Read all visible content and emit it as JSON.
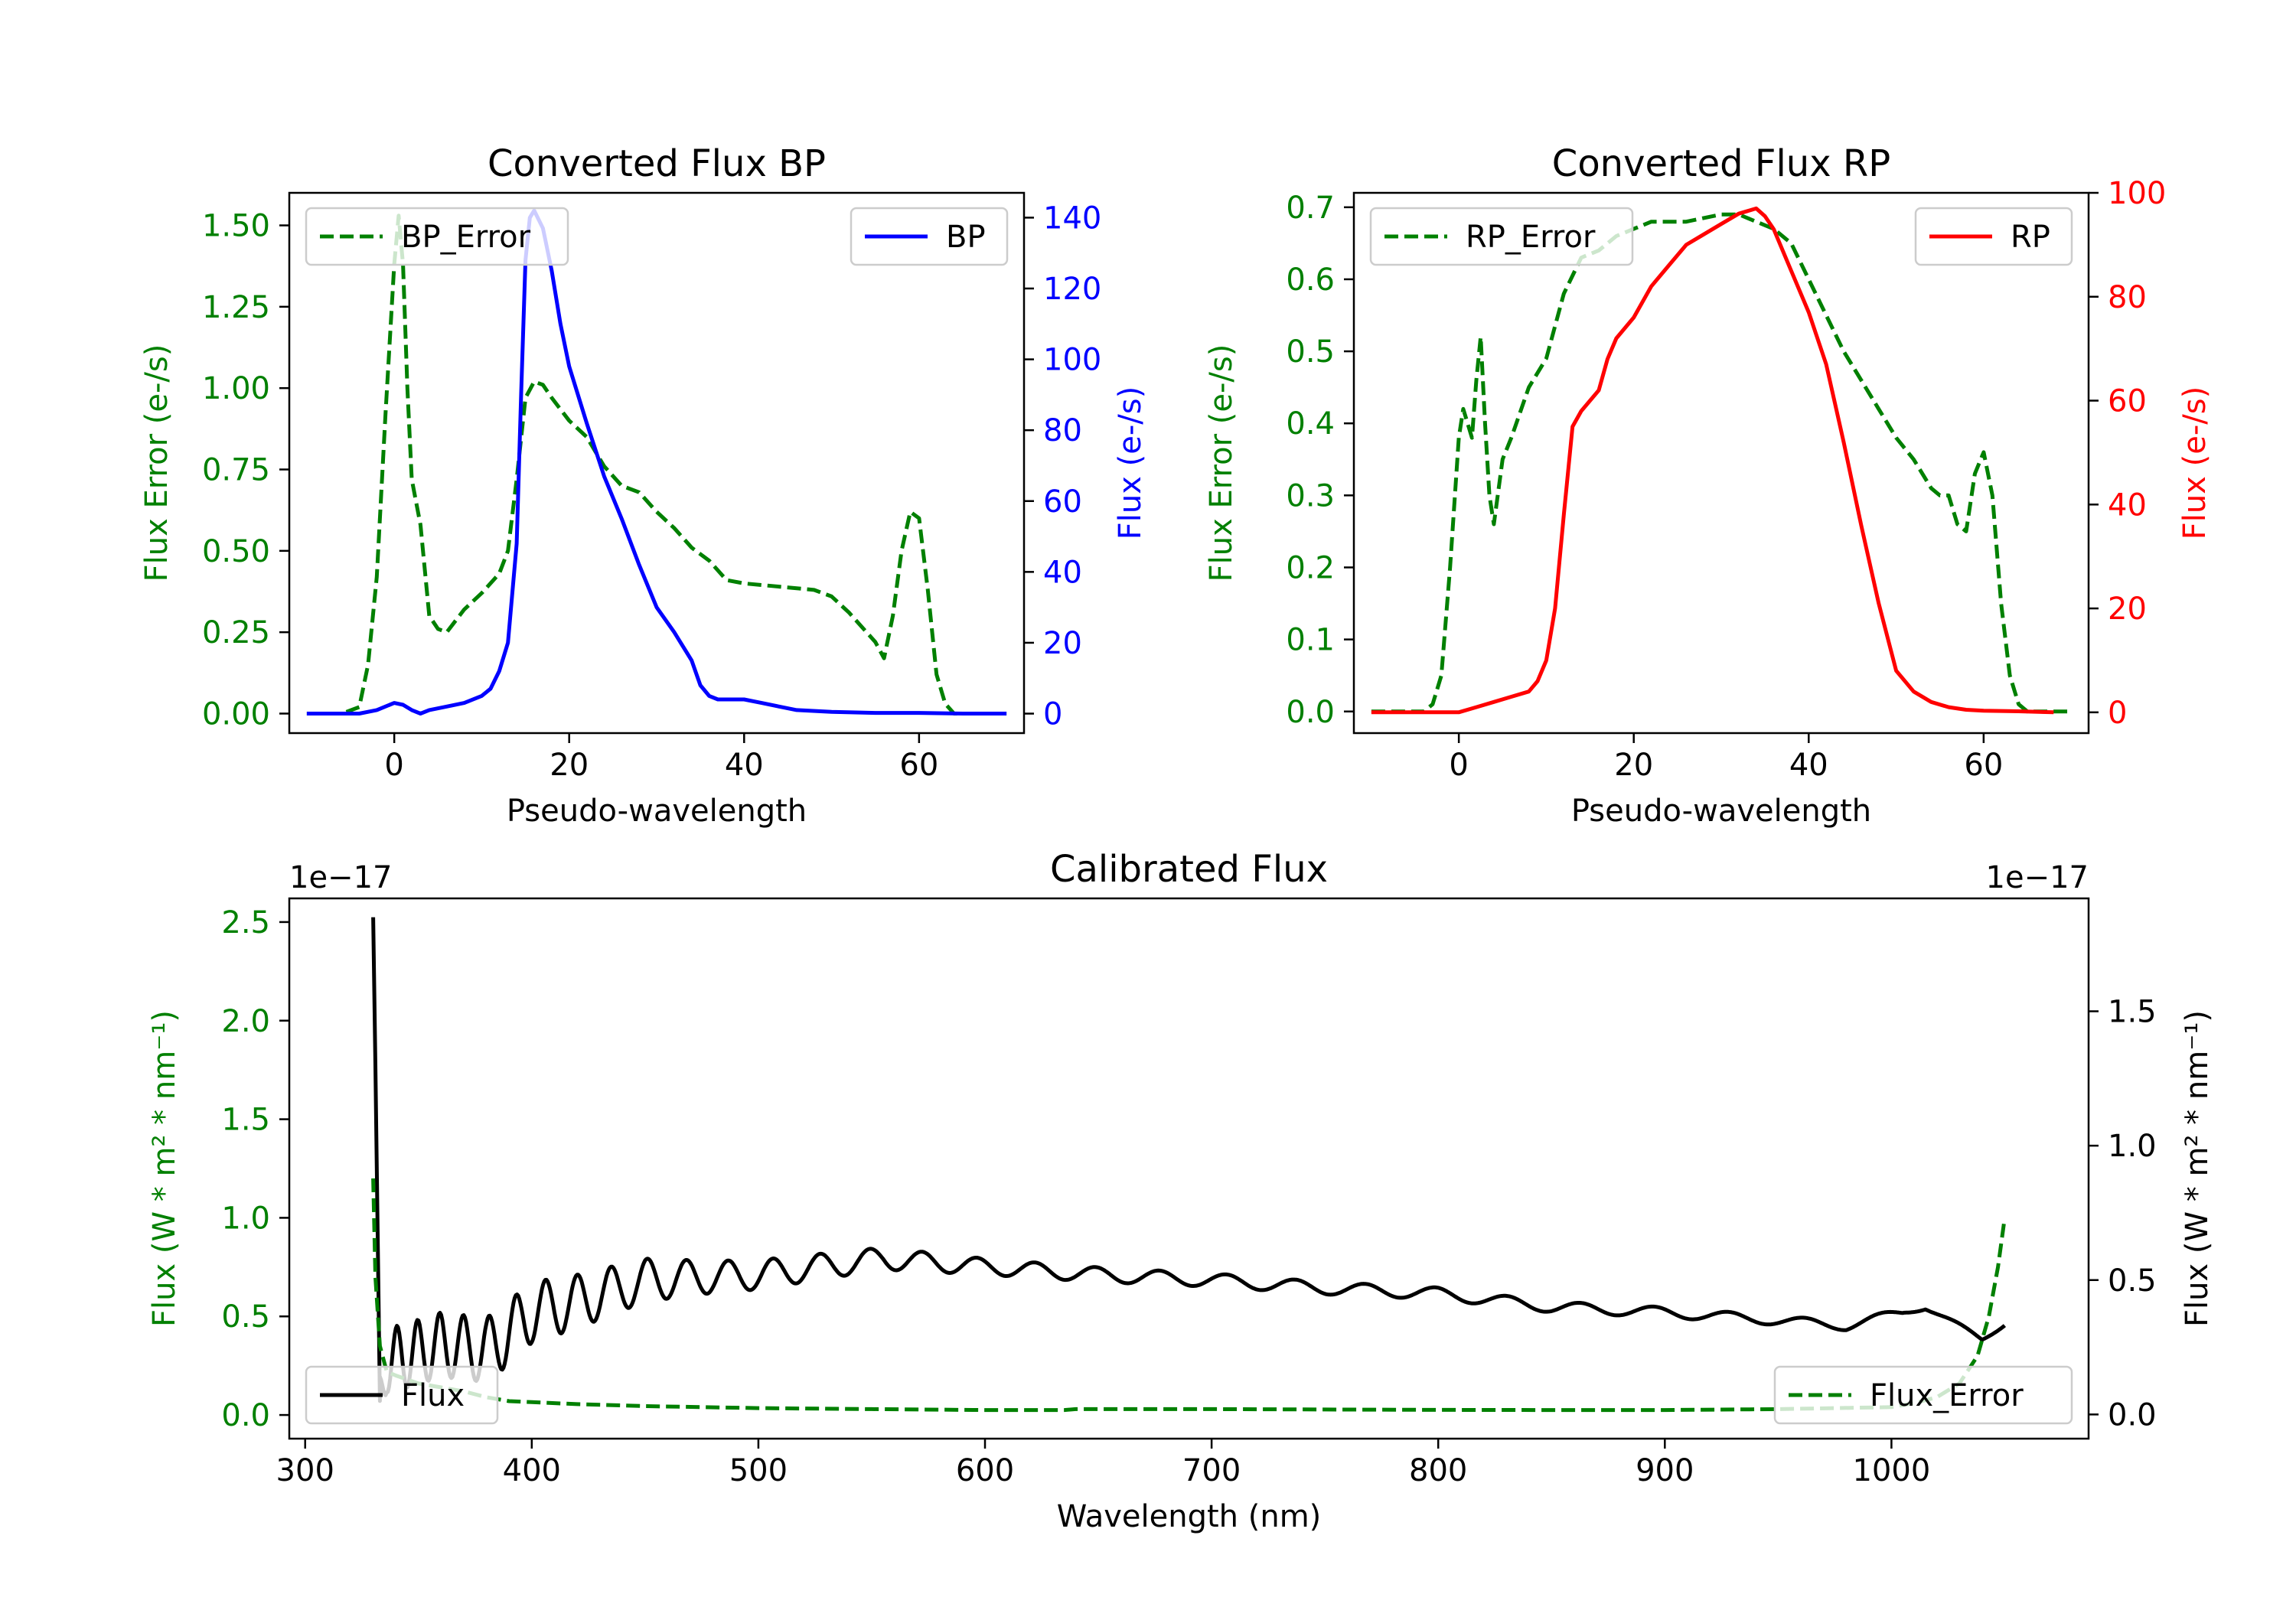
{
  "chart_data": [
    {
      "type": "line",
      "title": "Converted Flux BP",
      "xlabel": "Pseudo-wavelength",
      "xlim": [
        -12,
        72
      ],
      "x_ticks": [
        0,
        20,
        40,
        60
      ],
      "left_axis": {
        "label": "Flux Error (e-/s)",
        "color": "#008000",
        "ylim": [
          -0.06,
          1.6
        ],
        "ticks": [
          0.0,
          0.25,
          0.5,
          0.75,
          1.0,
          1.25,
          1.5
        ],
        "tick_labels": [
          "0.00",
          "0.25",
          "0.50",
          "0.75",
          "1.00",
          "1.25",
          "1.50"
        ]
      },
      "right_axis": {
        "label": "Flux (e-/s)",
        "color": "#0000ff",
        "ylim": [
          -5.5,
          147
        ],
        "ticks": [
          0,
          20,
          40,
          60,
          80,
          100,
          120,
          140
        ],
        "tick_labels": [
          "0",
          "20",
          "40",
          "60",
          "80",
          "100",
          "120",
          "140"
        ]
      },
      "series": [
        {
          "name": "BP_Error",
          "axis": "left",
          "color": "#008000",
          "style": "dashed",
          "x": [
            -10,
            -6,
            -4,
            -3,
            -2,
            -1,
            0,
            0.5,
            1,
            1.5,
            2,
            3,
            4,
            5,
            6,
            8,
            10,
            12,
            13,
            14,
            15,
            16,
            17,
            18,
            20,
            22,
            24,
            26,
            28,
            30,
            32,
            34,
            36,
            38,
            40,
            44,
            48,
            50,
            52,
            54,
            55,
            56,
            57,
            58,
            59,
            60,
            61,
            62,
            63,
            64,
            66,
            70
          ],
          "values": [
            0,
            0,
            0.02,
            0.15,
            0.42,
            0.92,
            1.38,
            1.53,
            1.38,
            1.0,
            0.72,
            0.58,
            0.3,
            0.26,
            0.25,
            0.32,
            0.37,
            0.43,
            0.5,
            0.72,
            0.97,
            1.02,
            1.01,
            0.97,
            0.9,
            0.85,
            0.76,
            0.7,
            0.68,
            0.62,
            0.57,
            0.51,
            0.47,
            0.41,
            0.4,
            0.39,
            0.38,
            0.36,
            0.31,
            0.25,
            0.22,
            0.17,
            0.3,
            0.5,
            0.62,
            0.6,
            0.38,
            0.12,
            0.03,
            0.0,
            0,
            0
          ]
        },
        {
          "name": "BP",
          "axis": "right",
          "color": "#0000ff",
          "style": "solid",
          "x": [
            -10,
            -4,
            -2,
            0,
            1,
            2,
            3,
            4,
            6,
            8,
            10,
            11,
            12,
            13,
            14,
            14.5,
            15,
            15.5,
            16,
            17,
            18,
            19,
            20,
            22,
            24,
            26,
            28,
            30,
            32,
            33,
            34,
            35,
            36,
            37,
            38,
            40,
            42,
            44,
            46,
            50,
            55,
            60,
            65,
            70
          ],
          "values": [
            0,
            0,
            1,
            3,
            2.5,
            1,
            0,
            1,
            2,
            3,
            5,
            7,
            12,
            20,
            48,
            90,
            128,
            140,
            142,
            137,
            125,
            110,
            98,
            82,
            67,
            55,
            42,
            30,
            23,
            19,
            15,
            8,
            5,
            4,
            4,
            4,
            3,
            2,
            1,
            0.5,
            0.2,
            0.2,
            0,
            0
          ]
        }
      ],
      "legend": [
        {
          "label": "BP_Error",
          "location": "upper-left"
        },
        {
          "label": "BP",
          "location": "upper-right"
        }
      ]
    },
    {
      "type": "line",
      "title": "Converted Flux RP",
      "xlabel": "Pseudo-wavelength",
      "xlim": [
        -12,
        72
      ],
      "x_ticks": [
        0,
        20,
        40,
        60
      ],
      "left_axis": {
        "label": "Flux Error (e-/s)",
        "color": "#008000",
        "ylim": [
          -0.03,
          0.72
        ],
        "ticks": [
          0.0,
          0.1,
          0.2,
          0.3,
          0.4,
          0.5,
          0.6,
          0.7
        ],
        "tick_labels": [
          "0.0",
          "0.1",
          "0.2",
          "0.3",
          "0.4",
          "0.5",
          "0.6",
          "0.7"
        ]
      },
      "right_axis": {
        "label": "Flux (e-/s)",
        "color": "#ff0000",
        "ylim": [
          -4,
          100
        ],
        "ticks": [
          0,
          20,
          40,
          60,
          80,
          100
        ],
        "tick_labels": [
          "0",
          "20",
          "40",
          "60",
          "80",
          "100"
        ]
      },
      "series": [
        {
          "name": "RP_Error",
          "axis": "right_none",
          "color": "#008000",
          "style": "dashed",
          "axis_ref": "left",
          "x": [
            -10,
            -4,
            -3,
            -2,
            -1,
            0,
            0.5,
            1,
            1.5,
            2,
            2.5,
            3,
            3.5,
            4,
            5,
            6,
            8,
            10,
            12,
            14,
            16,
            18,
            20,
            22,
            24,
            26,
            28,
            30,
            32,
            34,
            36,
            38,
            40,
            44,
            48,
            50,
            52,
            54,
            55,
            56,
            57,
            58,
            59,
            60,
            61,
            62,
            63,
            64,
            65,
            70
          ],
          "values": [
            0,
            0,
            0.01,
            0.05,
            0.2,
            0.38,
            0.42,
            0.4,
            0.38,
            0.46,
            0.52,
            0.4,
            0.3,
            0.26,
            0.35,
            0.38,
            0.45,
            0.49,
            0.58,
            0.63,
            0.64,
            0.66,
            0.67,
            0.68,
            0.68,
            0.68,
            0.685,
            0.69,
            0.69,
            0.68,
            0.67,
            0.65,
            0.6,
            0.5,
            0.42,
            0.38,
            0.35,
            0.31,
            0.3,
            0.3,
            0.26,
            0.25,
            0.33,
            0.36,
            0.3,
            0.15,
            0.05,
            0.01,
            0,
            0
          ]
        },
        {
          "name": "RP",
          "axis": "right",
          "color": "#ff0000",
          "style": "solid",
          "x": [
            -10,
            -2,
            0,
            2,
            4,
            6,
            8,
            9,
            10,
            11,
            12,
            13,
            14,
            15,
            16,
            17,
            18,
            20,
            22,
            24,
            26,
            28,
            30,
            32,
            33,
            34,
            35,
            36,
            38,
            40,
            42,
            44,
            46,
            48,
            50,
            52,
            54,
            56,
            58,
            60,
            64,
            68
          ],
          "values": [
            0,
            0,
            0,
            1,
            2,
            3,
            4,
            6,
            10,
            20,
            38,
            55,
            58,
            60,
            62,
            68,
            72,
            76,
            82,
            86,
            90,
            92,
            94,
            96,
            96.5,
            97,
            95.5,
            93,
            85,
            77,
            67,
            52,
            36,
            21,
            8,
            4,
            2,
            1,
            0.5,
            0.3,
            0.2,
            0
          ]
        }
      ],
      "legend": [
        {
          "label": "RP_Error",
          "location": "upper-left"
        },
        {
          "label": "RP",
          "location": "upper-right"
        }
      ]
    },
    {
      "type": "line",
      "title": "Calibrated Flux",
      "xlabel": "Wavelength (nm)",
      "xlim": [
        293,
        1087
      ],
      "x_ticks": [
        300,
        400,
        500,
        600,
        700,
        800,
        900,
        1000
      ],
      "left_axis": {
        "label": "Flux (W * m² * nm⁻¹)",
        "color": "#008000",
        "offset_text": "1e−17",
        "ylim": [
          -0.12,
          2.62
        ],
        "ticks": [
          0.0,
          0.5,
          1.0,
          1.5,
          2.0,
          2.5
        ],
        "tick_labels": [
          "0.0",
          "0.5",
          "1.0",
          "1.5",
          "2.0",
          "2.5"
        ]
      },
      "right_axis": {
        "label": "Flux (W * m² * nm⁻¹)",
        "color": "#000000",
        "offset_text": "1e−17",
        "ylim": [
          -0.09,
          1.92
        ],
        "ticks": [
          0.0,
          0.5,
          1.0,
          1.5
        ],
        "tick_labels": [
          "0.0",
          "0.5",
          "1.0",
          "1.5"
        ]
      },
      "series": [
        {
          "name": "Flux",
          "axis": "right",
          "color": "#000000",
          "style": "solid",
          "generator": "oscillating",
          "anchors_x": [
            330,
            331,
            333,
            336,
            345,
            360,
            380,
            395,
            400,
            420,
            450,
            500,
            555,
            600,
            650,
            700,
            750,
            800,
            850,
            900,
            950,
            980,
            1015,
            1040,
            1050
          ],
          "anchors_y": [
            1.85,
            1.3,
            0.05,
            0.2,
            0.22,
            0.26,
            0.24,
            0.34,
            0.38,
            0.42,
            0.5,
            0.52,
            0.58,
            0.55,
            0.52,
            0.5,
            0.47,
            0.45,
            0.4,
            0.38,
            0.35,
            0.33,
            0.4,
            0.28,
            0.34
          ],
          "oscillation_periods_nm": [
            [
              330,
              8
            ],
            [
              400,
              13
            ],
            [
              500,
              20
            ],
            [
              700,
              30
            ],
            [
              1050,
              35
            ]
          ],
          "oscillation_amplitudes": [
            [
              333,
              0.12
            ],
            [
              390,
              0.12
            ],
            [
              420,
              0.1
            ],
            [
              480,
              0.06
            ],
            [
              600,
              0.03
            ],
            [
              700,
              0.025
            ],
            [
              1050,
              0.015
            ]
          ]
        },
        {
          "name": "Flux_Error",
          "axis": "left",
          "color": "#008000",
          "style": "dashed",
          "x": [
            330,
            331,
            333,
            336,
            340,
            345,
            350,
            360,
            370,
            380,
            390,
            400,
            420,
            450,
            500,
            550,
            600,
            635,
            640,
            650,
            700,
            750,
            800,
            850,
            900,
            950,
            1000,
            1010,
            1020,
            1030,
            1038,
            1043,
            1047,
            1050
          ],
          "values": [
            1.2,
            0.7,
            0.35,
            0.22,
            0.2,
            0.18,
            0.16,
            0.14,
            0.12,
            0.09,
            0.07,
            0.065,
            0.055,
            0.045,
            0.035,
            0.03,
            0.025,
            0.025,
            0.03,
            0.03,
            0.03,
            0.028,
            0.026,
            0.025,
            0.025,
            0.03,
            0.04,
            0.06,
            0.09,
            0.16,
            0.3,
            0.5,
            0.75,
            1.0
          ]
        }
      ],
      "legend": [
        {
          "label": "Flux",
          "location": "lower-left"
        },
        {
          "label": "Flux_Error",
          "location": "lower-right"
        }
      ]
    }
  ]
}
